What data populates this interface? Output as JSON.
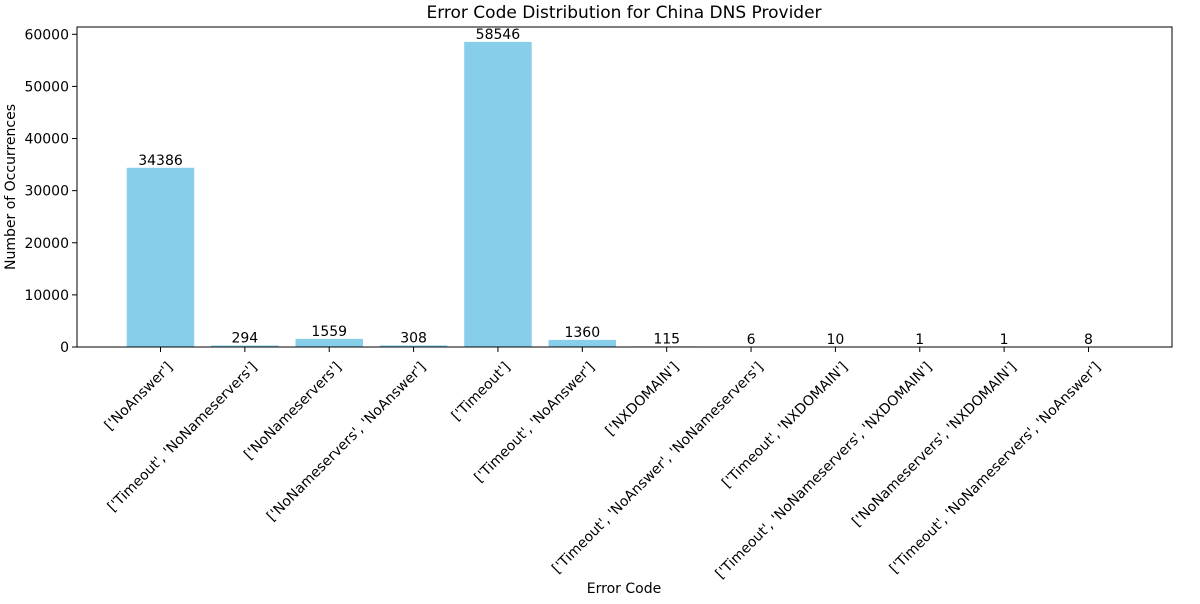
{
  "chart_data": {
    "type": "bar",
    "title": "Error Code Distribution for China DNS Provider",
    "xlabel": "Error Code",
    "ylabel": "Number of Occurrences",
    "categories": [
      "['NoAnswer']",
      "['Timeout', 'NoNameservers']",
      "['NoNameservers']",
      "['NoNameservers', 'NoAnswer']",
      "['Timeout']",
      "['Timeout', 'NoAnswer']",
      "['NXDOMAIN']",
      "['Timeout', 'NoAnswer', 'NoNameservers']",
      "['Timeout', 'NXDOMAIN']",
      "['Timeout', 'NoNameservers', 'NXDOMAIN']",
      "['NoNameservers', 'NXDOMAIN']",
      "['Timeout', 'NoNameservers', 'NoAnswer']"
    ],
    "values": [
      34386,
      294,
      1559,
      308,
      58546,
      1360,
      115,
      6,
      10,
      1,
      1,
      8
    ],
    "ylim": [
      0,
      61400
    ],
    "yticks": [
      0,
      10000,
      20000,
      30000,
      40000,
      50000,
      60000
    ],
    "bar_color": "#87ceeb",
    "grid": false,
    "legend": "none"
  }
}
